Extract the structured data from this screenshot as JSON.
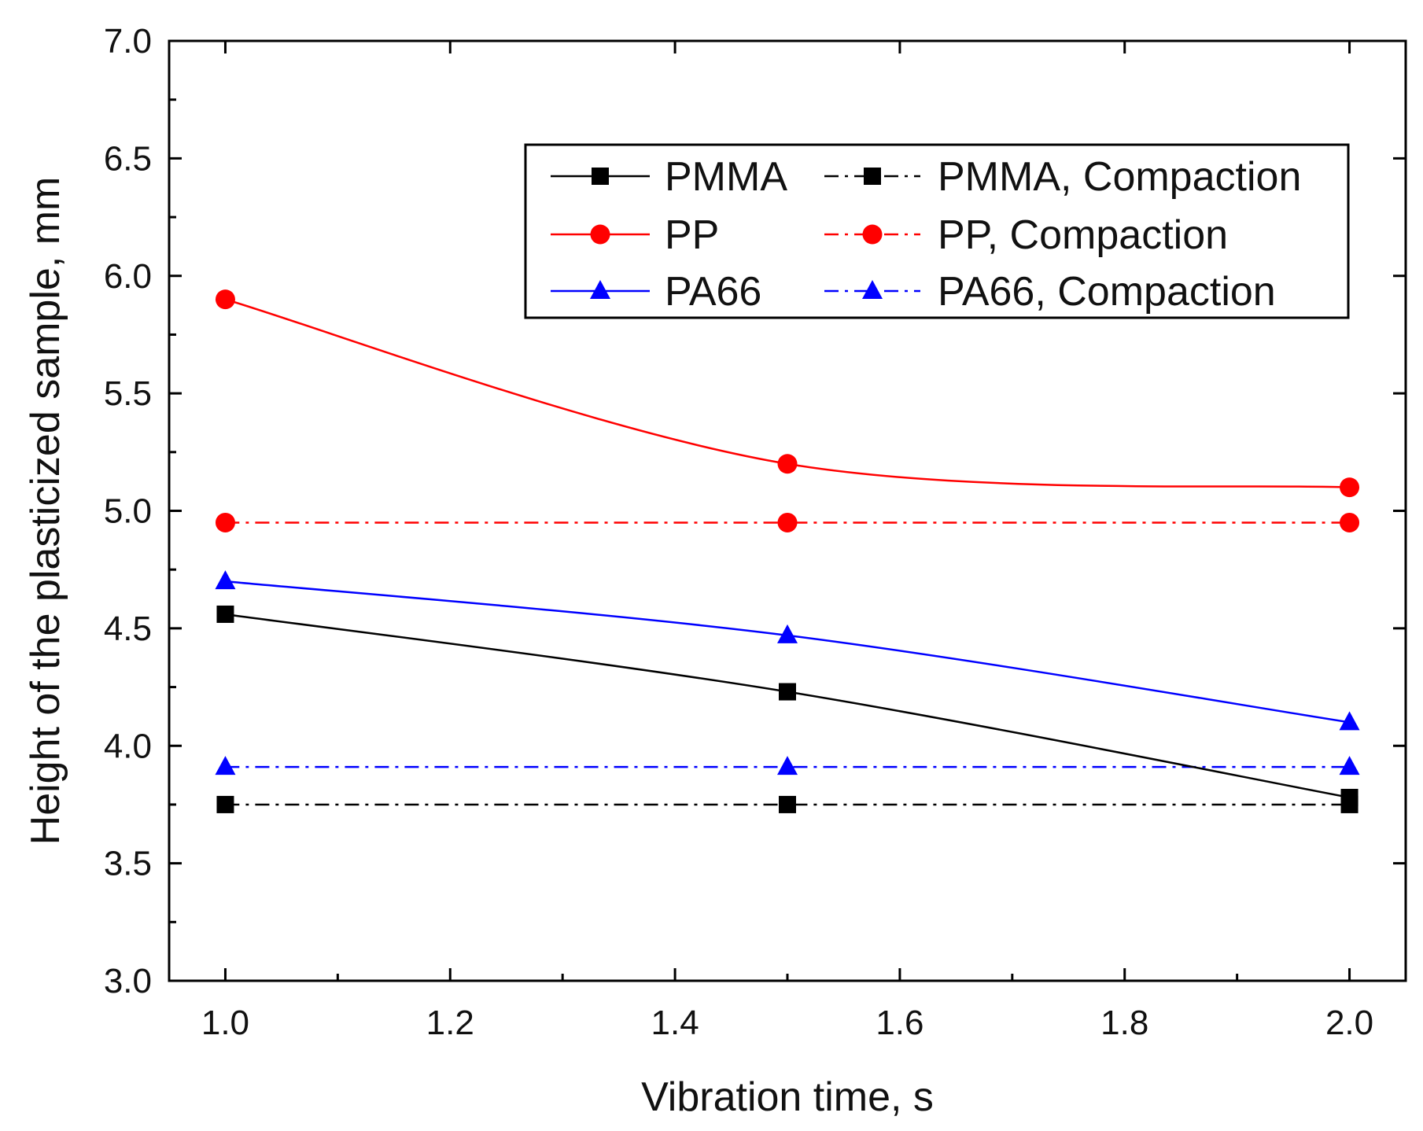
{
  "chart_data": {
    "type": "line",
    "title": "",
    "xlabel": "Vibration time, s",
    "ylabel": "Height of the plasticized sample, mm",
    "xlim": [
      0.95,
      2.05
    ],
    "ylim": [
      3.0,
      7.0
    ],
    "xticks": [
      1.0,
      1.2,
      1.4,
      1.6,
      1.8,
      2.0
    ],
    "xtick_labels": [
      "1.0",
      "1.2",
      "1.4",
      "1.6",
      "1.8",
      "2.0"
    ],
    "yticks": [
      3.0,
      3.5,
      4.0,
      4.5,
      5.0,
      5.5,
      6.0,
      6.5,
      7.0
    ],
    "ytick_labels": [
      "3.0",
      "3.5",
      "4.0",
      "4.5",
      "5.0",
      "5.5",
      "6.0",
      "6.5",
      "7.0"
    ],
    "grid": false,
    "legend_position": "top-right",
    "x": [
      1.0,
      1.5,
      2.0
    ],
    "series": [
      {
        "name": "PMMA",
        "values": [
          4.56,
          4.23,
          3.78
        ],
        "color": "#000000",
        "marker": "square",
        "dash": "solid"
      },
      {
        "name": "PMMA, Compaction",
        "values": [
          3.75,
          3.75,
          3.75
        ],
        "color": "#000000",
        "marker": "square",
        "dash": "dashdot"
      },
      {
        "name": "PP",
        "values": [
          5.9,
          5.2,
          5.1
        ],
        "color": "#ff0000",
        "marker": "circle",
        "dash": "solid"
      },
      {
        "name": "PP, Compaction",
        "values": [
          4.95,
          4.95,
          4.95
        ],
        "color": "#ff0000",
        "marker": "circle",
        "dash": "dashdot"
      },
      {
        "name": "PA66",
        "values": [
          4.7,
          4.47,
          4.1
        ],
        "color": "#0000ff",
        "marker": "triangle",
        "dash": "solid"
      },
      {
        "name": "PA66, Compaction",
        "values": [
          3.91,
          3.91,
          3.91
        ],
        "color": "#0000ff",
        "marker": "triangle",
        "dash": "dashdot"
      }
    ]
  }
}
